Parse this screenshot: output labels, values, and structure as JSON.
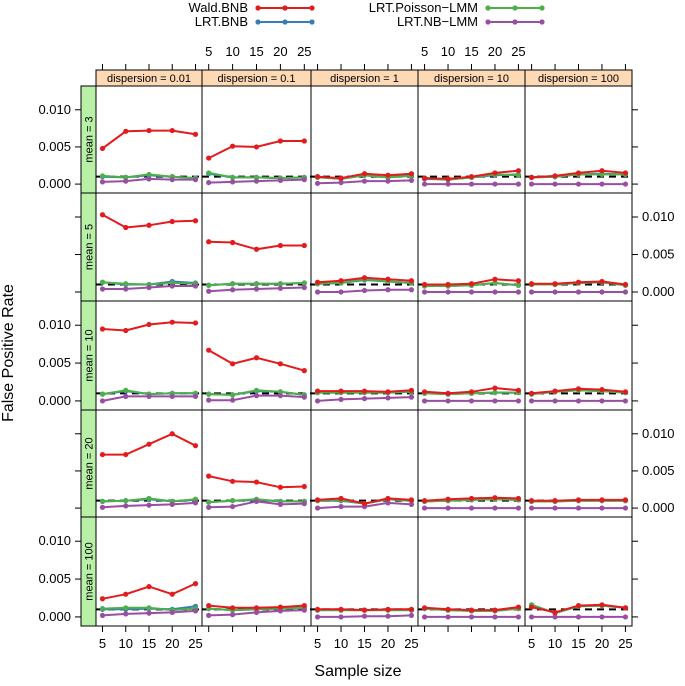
{
  "chart_data": {
    "type": "line",
    "title": "",
    "xlabel": "Sample size",
    "ylabel": "False Positive Rate",
    "x": [
      5,
      10,
      15,
      20,
      25
    ],
    "xticks": [
      5,
      10,
      15,
      20,
      25
    ],
    "ylim": [
      -0.0012,
      0.0132
    ],
    "yticks": [
      0.0,
      0.005,
      0.01
    ],
    "ytick_labels": [
      "0.000",
      "0.005",
      "0.010"
    ],
    "reference_line": 0.001,
    "col_strip_prefix": "dispersion = ",
    "row_strip_prefix": "mean = ",
    "dispersions": [
      "0.01",
      "0.1",
      "1",
      "10",
      "100"
    ],
    "means": [
      "3",
      "5",
      "10",
      "20",
      "100"
    ],
    "legend": {
      "position": "top",
      "entries": [
        {
          "name": "Wald.BNB",
          "color": "#e41a1c"
        },
        {
          "name": "LRT.Poisson−LMM",
          "color": "#4daf4a"
        },
        {
          "name": "LRT.BNB",
          "color": "#377eb8"
        },
        {
          "name": "LRT.NB−LMM",
          "color": "#984ea3"
        }
      ]
    },
    "series_colors": {
      "wald": "#e41a1c",
      "lrt_bnb": "#377eb8",
      "poisson": "#4daf4a",
      "nb_lmm": "#984ea3"
    },
    "strip_color": "#fdd9b5",
    "row_strip_color": "#b8f0a8",
    "panels": [
      {
        "mean": "3",
        "dispersion": "0.01",
        "wald": [
          0.0048,
          0.0071,
          0.0072,
          0.0072,
          0.0067
        ],
        "lrt_bnb": [
          0.001,
          0.0009,
          0.0012,
          0.001,
          0.0008
        ],
        "poisson": [
          0.0011,
          0.0009,
          0.0013,
          0.001,
          0.0008
        ],
        "nb_lmm": [
          0.0003,
          0.0004,
          0.0007,
          0.0006,
          0.0006
        ]
      },
      {
        "mean": "3",
        "dispersion": "0.1",
        "wald": [
          0.0035,
          0.0051,
          0.005,
          0.0058,
          0.0058
        ],
        "lrt_bnb": [
          0.0014,
          0.0009,
          0.0009,
          0.0008,
          0.0009
        ],
        "poisson": [
          0.0015,
          0.0009,
          0.0009,
          0.0008,
          0.0009
        ],
        "nb_lmm": [
          0.0002,
          0.0003,
          0.0004,
          0.0005,
          0.0006
        ]
      },
      {
        "mean": "3",
        "dispersion": "1",
        "wald": [
          0.001,
          0.0008,
          0.0014,
          0.0012,
          0.0014
        ],
        "lrt_bnb": [
          0.001,
          0.0007,
          0.0012,
          0.0009,
          0.0012
        ],
        "poisson": [
          0.0009,
          0.0007,
          0.0012,
          0.0009,
          0.0011
        ],
        "nb_lmm": [
          0.0001,
          0.0002,
          0.0004,
          0.0004,
          0.0005
        ]
      },
      {
        "mean": "3",
        "dispersion": "10",
        "wald": [
          0.0008,
          0.0007,
          0.001,
          0.0015,
          0.0018
        ],
        "lrt_bnb": [
          0.0007,
          0.0006,
          0.0009,
          0.0012,
          0.0013
        ],
        "poisson": [
          0.0008,
          0.0006,
          0.0009,
          0.0013,
          0.0012
        ],
        "nb_lmm": [
          0.0,
          0.0,
          0.0,
          0.0,
          0.0
        ]
      },
      {
        "mean": "3",
        "dispersion": "100",
        "wald": [
          0.0009,
          0.0011,
          0.0015,
          0.0018,
          0.0015
        ],
        "lrt_bnb": [
          0.0009,
          0.001,
          0.0013,
          0.0014,
          0.0013
        ],
        "poisson": [
          0.0009,
          0.001,
          0.0013,
          0.0013,
          0.0013
        ],
        "nb_lmm": [
          0.0,
          0.0,
          0.0,
          0.0,
          0.0
        ]
      },
      {
        "mean": "5",
        "dispersion": "0.01",
        "wald": [
          0.0103,
          0.0086,
          0.0089,
          0.0094,
          0.0095
        ],
        "lrt_bnb": [
          0.0013,
          0.001,
          0.001,
          0.0014,
          0.0012
        ],
        "poisson": [
          0.0013,
          0.0011,
          0.001,
          0.0012,
          0.0011
        ],
        "nb_lmm": [
          0.0004,
          0.0004,
          0.0006,
          0.0008,
          0.0008
        ]
      },
      {
        "mean": "5",
        "dispersion": "0.1",
        "wald": [
          0.0067,
          0.0066,
          0.0057,
          0.0062,
          0.0062
        ],
        "lrt_bnb": [
          0.0009,
          0.0011,
          0.0011,
          0.0011,
          0.0012
        ],
        "poisson": [
          0.0009,
          0.0011,
          0.0011,
          0.0011,
          0.0012
        ],
        "nb_lmm": [
          0.0001,
          0.0003,
          0.0004,
          0.0005,
          0.0006
        ]
      },
      {
        "mean": "5",
        "dispersion": "1",
        "wald": [
          0.0013,
          0.0015,
          0.0019,
          0.0017,
          0.0015
        ],
        "lrt_bnb": [
          0.0011,
          0.0012,
          0.0016,
          0.0014,
          0.0012
        ],
        "poisson": [
          0.0011,
          0.0012,
          0.0017,
          0.0014,
          0.0012
        ],
        "nb_lmm": [
          0.0,
          0.0,
          0.0002,
          0.0003,
          0.0003
        ]
      },
      {
        "mean": "5",
        "dispersion": "10",
        "wald": [
          0.001,
          0.001,
          0.0011,
          0.0017,
          0.0015
        ],
        "lrt_bnb": [
          0.0008,
          0.0008,
          0.0009,
          0.0012,
          0.0009
        ],
        "poisson": [
          0.0008,
          0.0008,
          0.0009,
          0.0012,
          0.0009
        ],
        "nb_lmm": [
          0.0,
          0.0,
          0.0,
          0.0,
          0.0
        ]
      },
      {
        "mean": "5",
        "dispersion": "100",
        "wald": [
          0.0011,
          0.0011,
          0.0013,
          0.0014,
          0.001
        ],
        "lrt_bnb": [
          0.001,
          0.001,
          0.0012,
          0.0013,
          0.0009
        ],
        "poisson": [
          0.001,
          0.001,
          0.0012,
          0.0013,
          0.0009
        ],
        "nb_lmm": [
          0.0,
          0.0,
          0.0,
          0.0,
          0.0
        ]
      },
      {
        "mean": "10",
        "dispersion": "0.01",
        "wald": [
          0.0095,
          0.0093,
          0.0101,
          0.0104,
          0.0103
        ],
        "lrt_bnb": [
          0.0009,
          0.0013,
          0.0009,
          0.001,
          0.001
        ],
        "poisson": [
          0.0009,
          0.0014,
          0.0009,
          0.001,
          0.001
        ],
        "nb_lmm": [
          0.0,
          0.0006,
          0.0006,
          0.0006,
          0.0006
        ]
      },
      {
        "mean": "10",
        "dispersion": "0.1",
        "wald": [
          0.0067,
          0.0049,
          0.0057,
          0.0049,
          0.004
        ],
        "lrt_bnb": [
          0.0009,
          0.0008,
          0.0013,
          0.0012,
          0.0008
        ],
        "poisson": [
          0.0009,
          0.0008,
          0.0014,
          0.0012,
          0.0008
        ],
        "nb_lmm": [
          0.0001,
          0.0001,
          0.0007,
          0.0007,
          0.0005
        ]
      },
      {
        "mean": "10",
        "dispersion": "1",
        "wald": [
          0.0013,
          0.0013,
          0.0013,
          0.0012,
          0.0014
        ],
        "lrt_bnb": [
          0.0011,
          0.0011,
          0.0011,
          0.0011,
          0.0012
        ],
        "poisson": [
          0.0011,
          0.0011,
          0.0011,
          0.0011,
          0.0012
        ],
        "nb_lmm": [
          0.0,
          0.0002,
          0.0003,
          0.0004,
          0.0005
        ]
      },
      {
        "mean": "10",
        "dispersion": "10",
        "wald": [
          0.0012,
          0.001,
          0.0012,
          0.0017,
          0.0014
        ],
        "lrt_bnb": [
          0.001,
          0.0009,
          0.001,
          0.0011,
          0.0011
        ],
        "poisson": [
          0.001,
          0.0009,
          0.001,
          0.0011,
          0.0011
        ],
        "nb_lmm": [
          0.0,
          0.0,
          0.0,
          0.0,
          0.0
        ]
      },
      {
        "mean": "10",
        "dispersion": "100",
        "wald": [
          0.001,
          0.0013,
          0.0016,
          0.0015,
          0.0012
        ],
        "lrt_bnb": [
          0.0009,
          0.0012,
          0.0014,
          0.0013,
          0.0011
        ],
        "poisson": [
          0.0009,
          0.0012,
          0.0014,
          0.0013,
          0.0011
        ],
        "nb_lmm": [
          0.0,
          0.0,
          0.0,
          0.0,
          0.0
        ]
      },
      {
        "mean": "20",
        "dispersion": "0.01",
        "wald": [
          0.0072,
          0.0072,
          0.0086,
          0.01,
          0.0084
        ],
        "lrt_bnb": [
          0.0009,
          0.001,
          0.0012,
          0.0009,
          0.0011
        ],
        "poisson": [
          0.0009,
          0.001,
          0.0013,
          0.0009,
          0.0012
        ],
        "nb_lmm": [
          0.0001,
          0.0003,
          0.0004,
          0.0005,
          0.0007
        ]
      },
      {
        "mean": "20",
        "dispersion": "0.1",
        "wald": [
          0.0043,
          0.0036,
          0.0035,
          0.0028,
          0.0029
        ],
        "lrt_bnb": [
          0.0008,
          0.001,
          0.0011,
          0.0009,
          0.0009
        ],
        "poisson": [
          0.0008,
          0.001,
          0.0012,
          0.0009,
          0.0009
        ],
        "nb_lmm": [
          0.0001,
          0.0002,
          0.0009,
          0.0005,
          0.0006
        ]
      },
      {
        "mean": "20",
        "dispersion": "1",
        "wald": [
          0.0011,
          0.0013,
          0.0006,
          0.0013,
          0.0011
        ],
        "lrt_bnb": [
          0.001,
          0.001,
          0.0006,
          0.0012,
          0.001
        ],
        "poisson": [
          0.001,
          0.0011,
          0.0006,
          0.0012,
          0.001
        ],
        "nb_lmm": [
          0.0,
          0.0002,
          0.0002,
          0.0007,
          0.0005
        ]
      },
      {
        "mean": "20",
        "dispersion": "10",
        "wald": [
          0.001,
          0.0012,
          0.0013,
          0.0014,
          0.0013
        ],
        "lrt_bnb": [
          0.0009,
          0.001,
          0.0011,
          0.0012,
          0.0011
        ],
        "poisson": [
          0.0009,
          0.001,
          0.0011,
          0.0012,
          0.0011
        ],
        "nb_lmm": [
          0.0,
          0.0,
          0.0,
          0.0,
          0.0
        ]
      },
      {
        "mean": "20",
        "dispersion": "100",
        "wald": [
          0.001,
          0.001,
          0.0011,
          0.0011,
          0.0011
        ],
        "lrt_bnb": [
          0.0009,
          0.0009,
          0.001,
          0.001,
          0.001
        ],
        "poisson": [
          0.0009,
          0.0009,
          0.001,
          0.001,
          0.001
        ],
        "nb_lmm": [
          0.0,
          0.0,
          0.0,
          0.0,
          0.0
        ]
      },
      {
        "mean": "100",
        "dispersion": "0.01",
        "wald": [
          0.0024,
          0.003,
          0.004,
          0.003,
          0.0044
        ],
        "lrt_bnb": [
          0.001,
          0.001,
          0.0011,
          0.001,
          0.0014
        ],
        "poisson": [
          0.0011,
          0.0012,
          0.0012,
          0.0009,
          0.0011
        ],
        "nb_lmm": [
          0.0002,
          0.0004,
          0.0005,
          0.0006,
          0.0008
        ]
      },
      {
        "mean": "100",
        "dispersion": "0.1",
        "wald": [
          0.0015,
          0.0012,
          0.0012,
          0.0013,
          0.0015
        ],
        "lrt_bnb": [
          0.0011,
          0.0009,
          0.001,
          0.0011,
          0.0012
        ],
        "poisson": [
          0.0011,
          0.0009,
          0.001,
          0.0011,
          0.0012
        ],
        "nb_lmm": [
          0.0002,
          0.0003,
          0.0006,
          0.0008,
          0.0009
        ]
      },
      {
        "mean": "100",
        "dispersion": "1",
        "wald": [
          0.001,
          0.001,
          0.0009,
          0.001,
          0.001
        ],
        "lrt_bnb": [
          0.0009,
          0.0009,
          0.0009,
          0.0009,
          0.0009
        ],
        "poisson": [
          0.0009,
          0.0009,
          0.0009,
          0.0009,
          0.0009
        ],
        "nb_lmm": [
          0.0,
          0.0,
          0.0001,
          0.0001,
          0.0002
        ]
      },
      {
        "mean": "100",
        "dispersion": "10",
        "wald": [
          0.0012,
          0.001,
          0.0009,
          0.0009,
          0.0013
        ],
        "lrt_bnb": [
          0.0011,
          0.0009,
          0.0008,
          0.0008,
          0.0011
        ],
        "poisson": [
          0.0011,
          0.0009,
          0.0008,
          0.0008,
          0.0011
        ],
        "nb_lmm": [
          0.0,
          0.0,
          0.0,
          0.0,
          0.0
        ]
      },
      {
        "mean": "100",
        "dispersion": "100",
        "wald": [
          0.0013,
          0.0006,
          0.0015,
          0.0016,
          0.0012
        ],
        "lrt_bnb": [
          0.0016,
          0.0005,
          0.0014,
          0.0015,
          0.0012
        ],
        "poisson": [
          0.0016,
          0.0005,
          0.0014,
          0.0015,
          0.0012
        ],
        "nb_lmm": [
          0.0,
          0.0,
          0.0,
          0.0,
          0.0
        ]
      }
    ]
  }
}
